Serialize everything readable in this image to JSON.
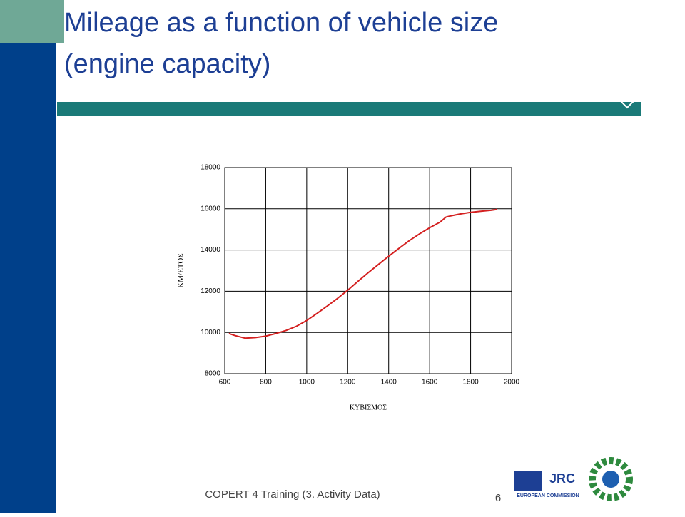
{
  "slide": {
    "title": "Mileage as a function of vehicle size (engine capacity)",
    "footer": "COPERT 4 Training (3. Activity Data)",
    "page_number": "6"
  },
  "logo": {
    "name": "JRC",
    "subtitle": "EUROPEAN COMMISSION"
  },
  "chart_data": {
    "type": "line",
    "x_label": "ΚΥΒΙΣΜΟΣ",
    "y_label": "ΚΜ/ΕΤΟΣ",
    "x": [
      620,
      650,
      700,
      750,
      800,
      850,
      900,
      950,
      1000,
      1050,
      1100,
      1150,
      1200,
      1250,
      1300,
      1350,
      1400,
      1450,
      1500,
      1550,
      1600,
      1650,
      1680,
      1700,
      1750,
      1800,
      1850,
      1900,
      1930
    ],
    "series": [
      {
        "name": "Mileage",
        "color": "#d42020",
        "values": [
          9950,
          9850,
          9720,
          9750,
          9820,
          9950,
          10100,
          10300,
          10580,
          10920,
          11280,
          11650,
          12050,
          12480,
          12900,
          13300,
          13700,
          14080,
          14450,
          14780,
          15080,
          15350,
          15600,
          15650,
          15750,
          15830,
          15880,
          15930,
          15970
        ]
      }
    ],
    "xlim": [
      600,
      2000
    ],
    "xticks": [
      600,
      800,
      1000,
      1200,
      1400,
      1600,
      1800,
      2000
    ],
    "ylim": [
      8000,
      18000
    ],
    "yticks": [
      8000,
      10000,
      12000,
      14000,
      16000,
      18000
    ],
    "grid": true
  }
}
